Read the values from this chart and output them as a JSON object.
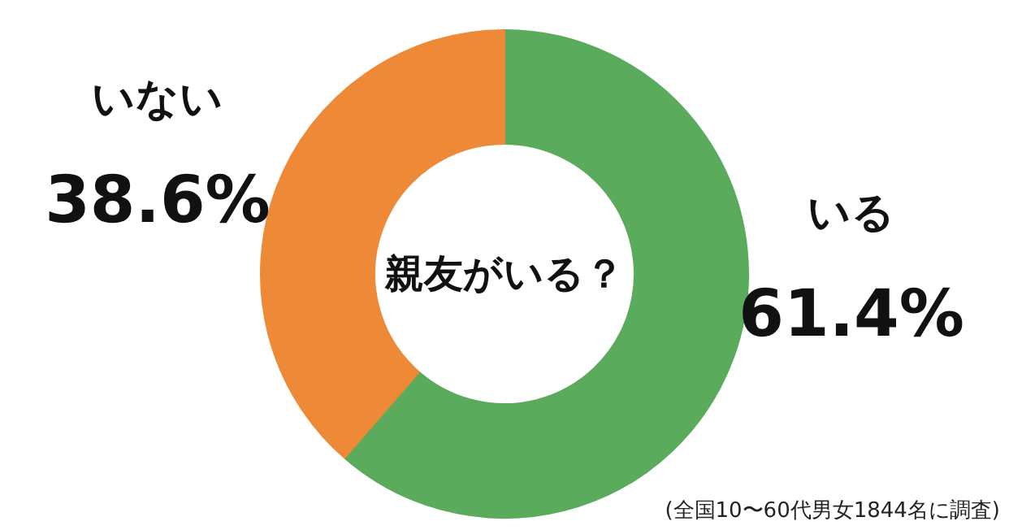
{
  "chart_data": {
    "type": "donut",
    "title": "親友がいる？",
    "categories": [
      "いる",
      "いない"
    ],
    "values": [
      61.4,
      38.6
    ],
    "colors": [
      "#5aab5c",
      "#ee8a37"
    ],
    "value_labels": [
      "61.4%",
      "38.6%"
    ],
    "annotations": [
      "(全国10〜60代男女1844名に調査)"
    ]
  }
}
